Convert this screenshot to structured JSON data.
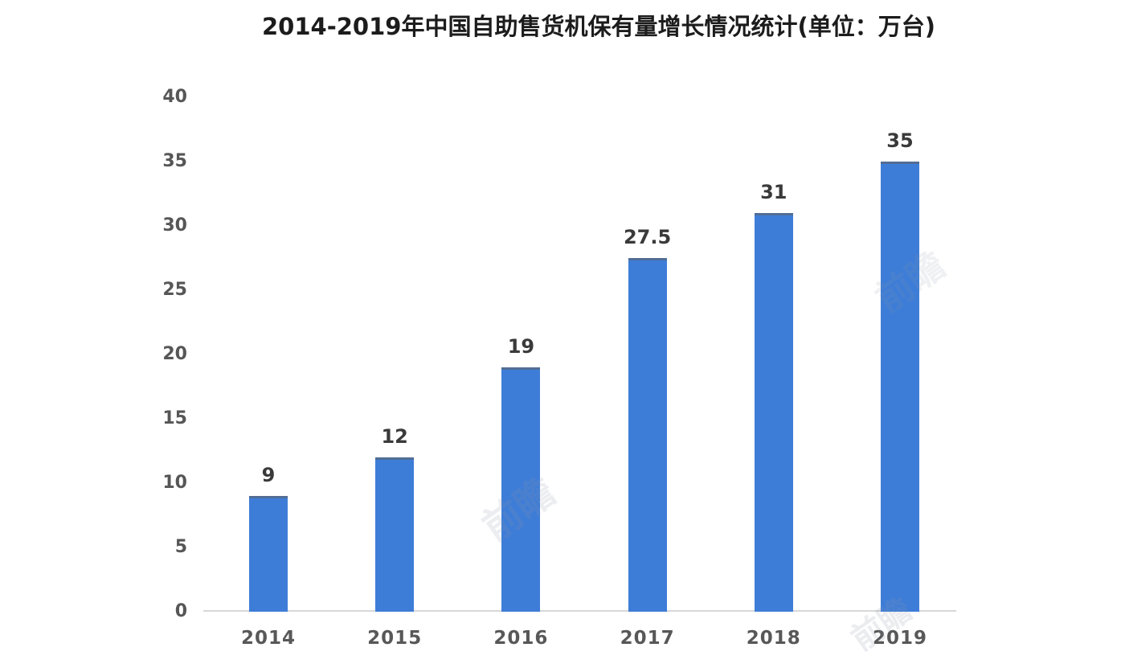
{
  "title": "2014-2019年中国自助售货机保有量增长情况统计(单位：万台)",
  "watermark": {
    "text": "前瞻"
  },
  "chart_data": {
    "type": "bar",
    "title": "2014-2019年中国自助售货机保有量增长情况统计(单位：万台)",
    "categories": [
      "2014",
      "2015",
      "2016",
      "2017",
      "2018",
      "2019"
    ],
    "values": [
      9,
      12,
      19,
      27.5,
      31,
      35
    ],
    "value_labels": [
      "9",
      "12",
      "19",
      "27.5",
      "31",
      "35"
    ],
    "series_name": "中国自助售货机保有量",
    "unit": "万台",
    "xlabel": "",
    "ylabel": "",
    "ylim": [
      0,
      40
    ],
    "yticks": [
      0,
      5,
      10,
      15,
      20,
      25,
      30,
      35,
      40
    ],
    "grid": false,
    "legend_position": "none",
    "bar_color": "#3e7dd7",
    "axis_line_color": "#d8d8d8",
    "tick_label_color": "#565656",
    "value_label_color": "#3a3a3a",
    "title_color": "#1c1c1c",
    "background_color": "#ffffff"
  }
}
